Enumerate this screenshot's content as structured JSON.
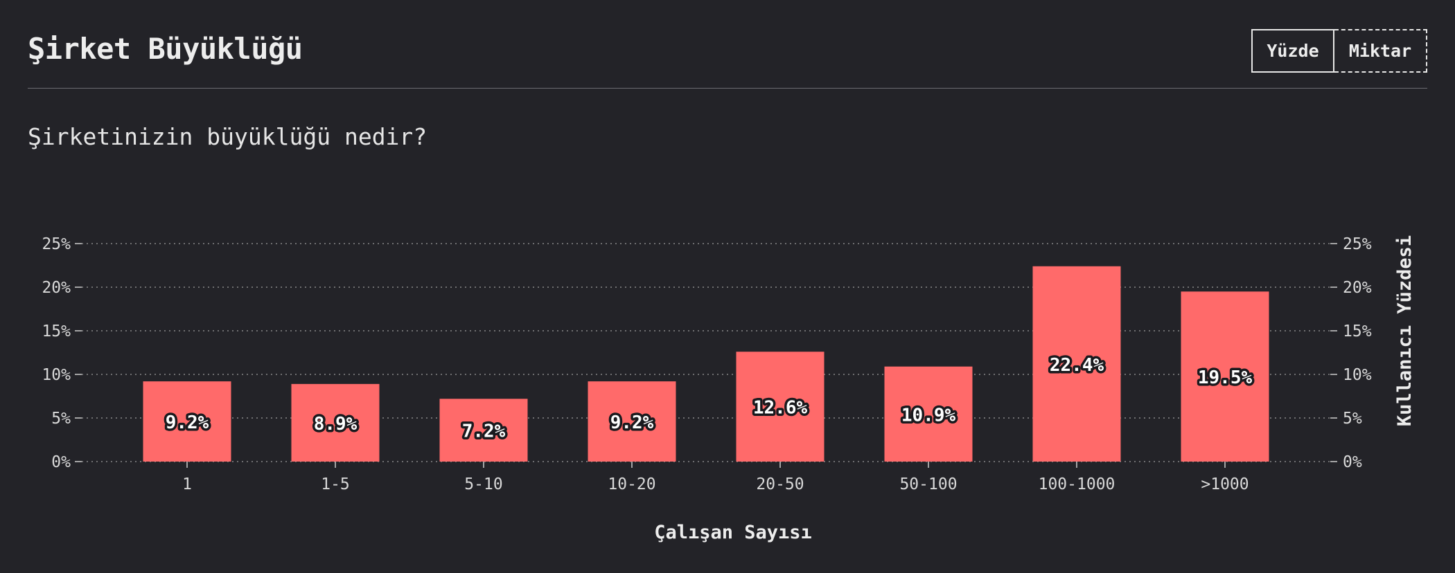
{
  "header": {
    "title": "Şirket Büyüklüğü",
    "toggle_percent": "Yüzde",
    "toggle_count": "Miktar"
  },
  "question": "Şirketinizin büyüklüğü nedir?",
  "colors": {
    "background": "#232328",
    "bar": "#ff6a6a",
    "grid": "#8a8a8a",
    "text": "#ededed"
  },
  "chart_data": {
    "type": "bar",
    "categories": [
      "1",
      "1-5",
      "5-10",
      "10-20",
      "20-50",
      "50-100",
      "100-1000",
      ">1000"
    ],
    "values": [
      9.2,
      8.9,
      7.2,
      9.2,
      12.6,
      10.9,
      22.4,
      19.5
    ],
    "value_labels": [
      "9.2%",
      "8.9%",
      "7.2%",
      "9.2%",
      "12.6%",
      "10.9%",
      "22.4%",
      "19.5%"
    ],
    "xlabel": "Çalışan Sayısı",
    "ylabel": "Kullanıcı Yüzdesi",
    "ylim": [
      0,
      25
    ],
    "yticks": [
      0,
      5,
      10,
      15,
      20,
      25
    ],
    "ytick_labels": [
      "0%",
      "5%",
      "10%",
      "15%",
      "20%",
      "25%"
    ],
    "grid": "horizontal dotted",
    "y_axis_sides": "left and right"
  }
}
